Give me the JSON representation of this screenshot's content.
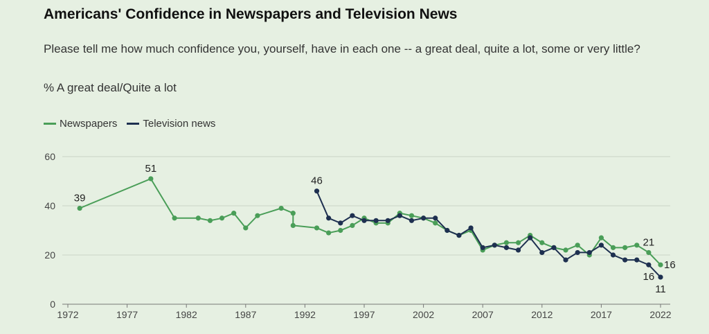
{
  "chart_data": {
    "type": "line",
    "title": "Americans' Confidence in Newspapers and Television News",
    "subtitle": "Please tell me how much confidence you, yourself, have in each one -- a great deal, quite a lot, some or very little?",
    "metric": "% A great deal/Quite a lot",
    "ylim": [
      0,
      60
    ],
    "xlim": [
      1972,
      2022
    ],
    "yticks": [
      0,
      20,
      40,
      60
    ],
    "xticks": [
      1972,
      1977,
      1982,
      1987,
      1992,
      1997,
      2002,
      2007,
      2012,
      2017,
      2022
    ],
    "grid": true,
    "legend": "top-left",
    "series": [
      {
        "name": "Newspapers",
        "color": "#4a9e58",
        "points": [
          [
            1973,
            39
          ],
          [
            1979,
            51
          ],
          [
            1981,
            35
          ],
          [
            1983,
            35
          ],
          [
            1984,
            34
          ],
          [
            1985,
            35
          ],
          [
            1986,
            37
          ],
          [
            1987,
            31
          ],
          [
            1988,
            36
          ],
          [
            1990,
            39
          ],
          [
            1991,
            37
          ],
          [
            1991,
            32
          ],
          [
            1993,
            31
          ],
          [
            1994,
            29
          ],
          [
            1995,
            30
          ],
          [
            1996,
            32
          ],
          [
            1997,
            35
          ],
          [
            1998,
            33
          ],
          [
            1999,
            33
          ],
          [
            2000,
            37
          ],
          [
            2001,
            36
          ],
          [
            2002,
            35
          ],
          [
            2003,
            33
          ],
          [
            2004,
            30
          ],
          [
            2005,
            28
          ],
          [
            2006,
            30
          ],
          [
            2007,
            22
          ],
          [
            2008,
            24
          ],
          [
            2009,
            25
          ],
          [
            2010,
            25
          ],
          [
            2011,
            28
          ],
          [
            2012,
            25
          ],
          [
            2013,
            23
          ],
          [
            2014,
            22
          ],
          [
            2015,
            24
          ],
          [
            2016,
            20
          ],
          [
            2017,
            27
          ],
          [
            2018,
            23
          ],
          [
            2019,
            23
          ],
          [
            2020,
            24
          ],
          [
            2021,
            21
          ],
          [
            2022,
            16
          ]
        ],
        "labels": [
          {
            "x": 1973,
            "y": 39,
            "text": "39",
            "pos": "above"
          },
          {
            "x": 1979,
            "y": 51,
            "text": "51",
            "pos": "above"
          },
          {
            "x": 2021,
            "y": 21,
            "text": "21",
            "pos": "above"
          },
          {
            "x": 2022,
            "y": 16,
            "text": "16",
            "pos": "right"
          }
        ]
      },
      {
        "name": "Television news",
        "color": "#1e3050",
        "points": [
          [
            1993,
            46
          ],
          [
            1994,
            35
          ],
          [
            1995,
            33
          ],
          [
            1996,
            36
          ],
          [
            1997,
            34
          ],
          [
            1998,
            34
          ],
          [
            1999,
            34
          ],
          [
            2000,
            36
          ],
          [
            2001,
            34
          ],
          [
            2002,
            35
          ],
          [
            2003,
            35
          ],
          [
            2004,
            30
          ],
          [
            2005,
            28
          ],
          [
            2006,
            31
          ],
          [
            2007,
            23
          ],
          [
            2008,
            24
          ],
          [
            2009,
            23
          ],
          [
            2010,
            22
          ],
          [
            2011,
            27
          ],
          [
            2012,
            21
          ],
          [
            2013,
            23
          ],
          [
            2014,
            18
          ],
          [
            2015,
            21
          ],
          [
            2016,
            21
          ],
          [
            2017,
            24
          ],
          [
            2018,
            20
          ],
          [
            2019,
            18
          ],
          [
            2020,
            18
          ],
          [
            2021,
            16
          ],
          [
            2022,
            11
          ]
        ],
        "labels": [
          {
            "x": 1993,
            "y": 46,
            "text": "46",
            "pos": "above"
          },
          {
            "x": 2021,
            "y": 16,
            "text": "16",
            "pos": "below"
          },
          {
            "x": 2022,
            "y": 11,
            "text": "11",
            "pos": "below"
          }
        ]
      }
    ]
  }
}
